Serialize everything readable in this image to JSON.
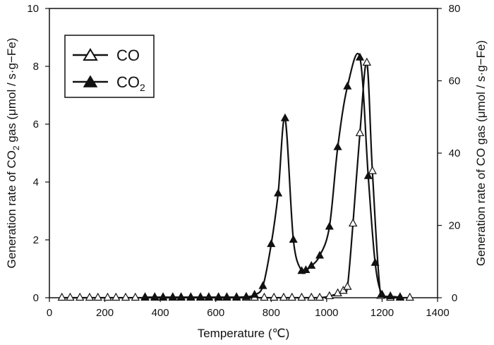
{
  "chart_data": {
    "type": "line",
    "xlabel": "Temperature (℃)",
    "ylabel_left_prefix": "Generation rate of CO",
    "ylabel_left_sub": "2",
    "ylabel_left_suffix": " gas (μmol / s·g−Fe)",
    "ylabel_right": "Generation rate of CO gas (μmol / s·g−Fe)",
    "xlim": [
      0,
      1400
    ],
    "ylim_left": [
      0,
      10
    ],
    "ylim_right": [
      0,
      80
    ],
    "x_ticks": [
      0,
      200,
      400,
      600,
      800,
      1000,
      1200,
      1400
    ],
    "y_left_ticks": [
      0,
      2,
      4,
      6,
      8,
      10
    ],
    "y_right_ticks": [
      0,
      20,
      40,
      60,
      80
    ],
    "grid": false,
    "legend_position": "top-left",
    "series": [
      {
        "name": "CO",
        "marker": "open-triangle",
        "axis": "right",
        "x": [
          45,
          75,
          110,
          145,
          175,
          210,
          240,
          275,
          310,
          345,
          380,
          410,
          445,
          475,
          510,
          545,
          575,
          610,
          640,
          675,
          710,
          740,
          775,
          810,
          845,
          875,
          910,
          945,
          975,
          1010,
          1040,
          1060,
          1075,
          1095,
          1120,
          1145,
          1165,
          1195,
          1230,
          1265,
          1300
        ],
        "values": [
          0,
          0,
          0,
          0,
          0,
          0,
          0,
          0,
          0,
          0,
          0,
          0,
          0,
          0,
          0,
          0,
          0,
          0,
          0,
          0,
          0,
          0,
          0,
          0,
          0,
          0,
          0,
          0,
          0,
          0.4,
          1.2,
          1.9,
          3.0,
          20.5,
          45.5,
          65.0,
          35.0,
          0.5,
          0,
          0,
          0
        ]
      },
      {
        "name": "CO2",
        "marker": "filled-triangle",
        "axis": "left",
        "x": [
          345,
          380,
          410,
          445,
          475,
          510,
          545,
          575,
          610,
          640,
          675,
          710,
          740,
          770,
          800,
          825,
          850,
          880,
          910,
          925,
          945,
          975,
          1010,
          1040,
          1075,
          1120,
          1150,
          1175,
          1200,
          1230,
          1265
        ],
        "values": [
          0.02,
          0.02,
          0.02,
          0.02,
          0.02,
          0.02,
          0.02,
          0.02,
          0.02,
          0.02,
          0.02,
          0.03,
          0.1,
          0.4,
          1.85,
          3.6,
          6.2,
          2.0,
          0.92,
          0.95,
          1.1,
          1.45,
          2.45,
          5.2,
          7.3,
          8.3,
          4.2,
          1.2,
          0.1,
          0.05,
          0.02
        ]
      }
    ]
  },
  "legend": {
    "items": [
      {
        "label_main": "CO",
        "label_sub": "",
        "marker": "open-triangle"
      },
      {
        "label_main": "CO",
        "label_sub": "2",
        "marker": "filled-triangle"
      }
    ]
  }
}
